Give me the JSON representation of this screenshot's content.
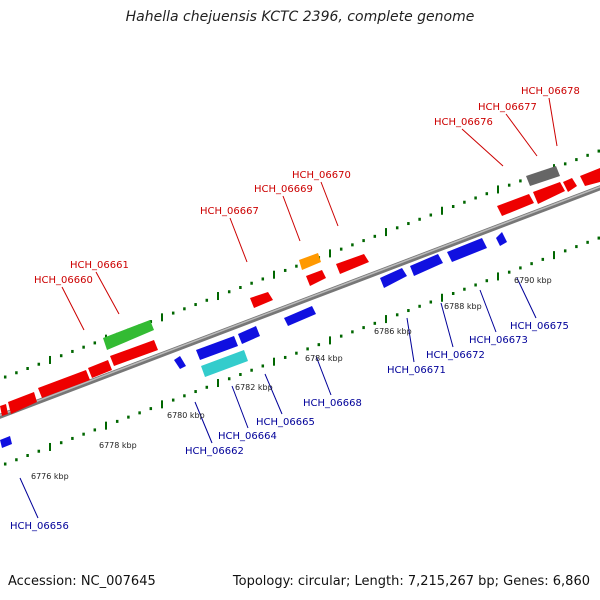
{
  "title": "Hahella chejuensis KCTC 2396, complete genome",
  "footer": {
    "accession": "Accession: NC_007645",
    "summary": "Topology: circular; Length: 7,215,267 bp; Genes: 6,860"
  },
  "colors": {
    "forward_label": "#cc0000",
    "reverse_label": "#000099",
    "red_gene": "#ee0000",
    "blue_gene": "#1010e0",
    "green_gene": "#33bb33",
    "cyan_gene": "#33cccc",
    "orange_gene": "#ff9900",
    "gray_gene": "#666666",
    "tick": "#006600",
    "backbone": "#888888"
  },
  "scale_labels": [
    "6776 kbp",
    "6778 kbp",
    "6780 kbp",
    "6782 kbp",
    "6784 kbp",
    "6786 kbp",
    "6788 kbp",
    "6790 kbp"
  ],
  "forward_gene_labels": [
    "HCH_06660",
    "HCH_06661",
    "HCH_06667",
    "HCH_06669",
    "HCH_06670",
    "HCH_06676",
    "HCH_06677",
    "HCH_06678"
  ],
  "reverse_gene_labels": [
    "HCH_06656",
    "HCH_06662",
    "HCH_06664",
    "HCH_06665",
    "HCH_06668",
    "HCH_06671",
    "HCH_06672",
    "HCH_06673",
    "HCH_06675"
  ]
}
